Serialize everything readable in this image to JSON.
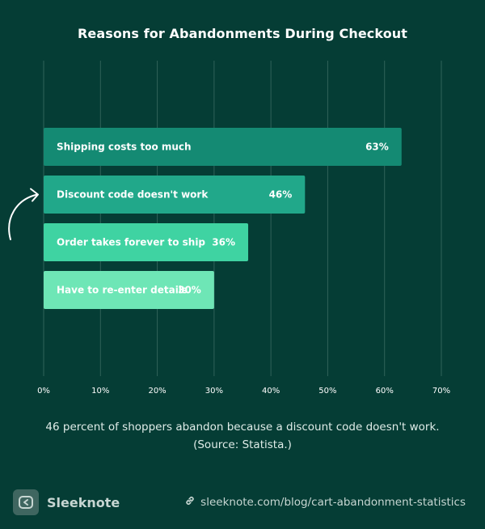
{
  "chart_data": {
    "type": "bar",
    "orientation": "horizontal",
    "title": "Reasons for Abandonments During Checkout",
    "categories": [
      "Shipping costs too much",
      "Discount code doesn't work",
      "Order takes forever to ship",
      "Have to re-enter details"
    ],
    "values": [
      63,
      46,
      36,
      30
    ],
    "value_labels": [
      "63%",
      "46%",
      "36%",
      "30%"
    ],
    "bar_colors": [
      "#148a73",
      "#21a88a",
      "#3fd3a2",
      "#6ee6b6"
    ],
    "xlim": [
      0,
      70
    ],
    "xticks": [
      0,
      10,
      20,
      30,
      40,
      50,
      60,
      70
    ],
    "xtick_labels": [
      "0%",
      "10%",
      "20%",
      "30%",
      "40%",
      "50%",
      "60%",
      "70%"
    ],
    "grid": true,
    "highlighted_category": "Discount code doesn't work"
  },
  "caption": "46 percent of shoppers abandon because a discount code doesn't work. (Source: Statista.)",
  "footer": {
    "brand": "Sleeknote",
    "link": "sleeknote.com/blog/cart-abandonment-statistics",
    "brand_icon": "sleeknote-logo-icon",
    "link_icon": "link-icon"
  },
  "colors": {
    "background": "#053d35",
    "grid": "#2f6259",
    "text": "#ffffff"
  }
}
